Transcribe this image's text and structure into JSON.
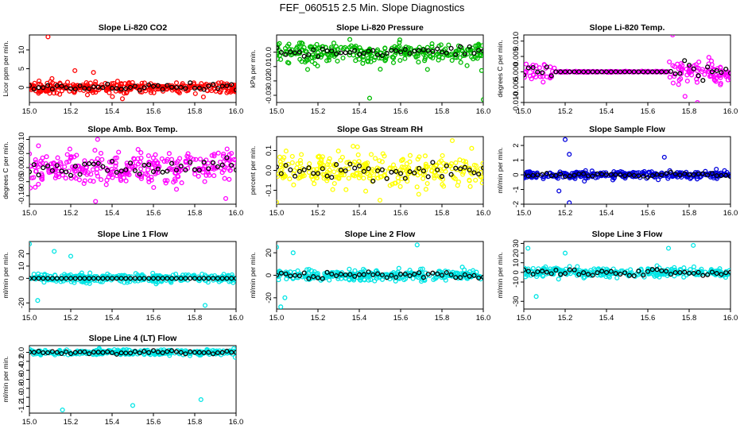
{
  "page": {
    "title": "FEF_060515  2.5 Min. Slope Diagnostics"
  },
  "chart_data": [
    {
      "type": "scatter",
      "title": "Slope Li-820 CO2",
      "xlabel": "",
      "ylabel": "Licor ppm per min.",
      "color": "#ff0000",
      "xlim": [
        15.0,
        16.0
      ],
      "ylim": [
        -4,
        14
      ],
      "xticks": [
        "15.0",
        "15.2",
        "15.4",
        "15.6",
        "15.8",
        "16.0"
      ],
      "yticks": [
        "0",
        "5",
        "10"
      ],
      "spread": 1.2,
      "outliers": [
        [
          15.09,
          13.5
        ],
        [
          15.22,
          4.5
        ],
        [
          15.45,
          -3
        ],
        [
          15.31,
          4
        ]
      ]
    },
    {
      "type": "scatter",
      "title": "Slope Li-820 Pressure",
      "xlabel": "",
      "ylabel": "kPa per min.",
      "color": "#00bb00",
      "xlim": [
        15.0,
        16.0
      ],
      "ylim": [
        -0.035,
        0.012
      ],
      "xticks": [
        "15.0",
        "15.2",
        "15.4",
        "15.6",
        "15.8",
        "16.0"
      ],
      "yticks": [
        "-0.03",
        "-0.02",
        "-0.01",
        "0.0"
      ],
      "spread": 0.006,
      "outliers": [
        [
          15.45,
          -0.032
        ],
        [
          16.0,
          -0.033
        ],
        [
          15.15,
          -0.012
        ],
        [
          15.73,
          -0.012
        ]
      ]
    },
    {
      "type": "scatter",
      "title": "Slope Li-820 Temp.",
      "xlabel": "",
      "ylabel": "degrees C per min.",
      "color": "#ff00ff",
      "xlim": [
        15.0,
        16.0
      ],
      "ylim": [
        -0.01,
        0.012
      ],
      "xticks": [
        "15.0",
        "15.2",
        "15.4",
        "15.6",
        "15.8",
        "16.0"
      ],
      "yticks": [
        "-0.010",
        "-0.005",
        "0.000",
        "0.005",
        "0.010"
      ],
      "spread": 0.003,
      "outliers": [
        [
          15.72,
          0.012
        ],
        [
          15.78,
          -0.008
        ],
        [
          15.84,
          -0.01
        ]
      ]
    },
    {
      "type": "scatter",
      "title": "Slope Amb. Box Temp.",
      "xlabel": "",
      "ylabel": "degrees C per min.",
      "color": "#ff00ff",
      "xlim": [
        15.0,
        16.0
      ],
      "ylim": [
        -0.13,
        0.11
      ],
      "xticks": [
        "15.0",
        "15.2",
        "15.4",
        "15.6",
        "15.8",
        "16.0"
      ],
      "yticks": [
        "-0.10",
        "-0.05",
        "0.00",
        "0.05",
        "0.10"
      ],
      "spread": 0.05,
      "outliers": [
        [
          15.32,
          -0.12
        ],
        [
          15.95,
          -0.11
        ],
        [
          15.33,
          0.1
        ]
      ]
    },
    {
      "type": "scatter",
      "title": "Slope Gas Stream RH",
      "xlabel": "",
      "ylabel": "percent per min.",
      "color": "#ffff00",
      "xlim": [
        15.0,
        16.0
      ],
      "ylim": [
        -0.17,
        0.17
      ],
      "xticks": [
        "15.0",
        "15.2",
        "15.4",
        "15.6",
        "15.8",
        "16.0"
      ],
      "yticks": [
        "-0.1",
        "0.0",
        "0.1"
      ],
      "spread": 0.06,
      "outliers": [
        [
          15.85,
          0.15
        ],
        [
          15.0,
          -0.16
        ],
        [
          15.5,
          -0.15
        ]
      ]
    },
    {
      "type": "scatter",
      "title": "Slope Sample Flow",
      "xlabel": "",
      "ylabel": "ml/min per min.",
      "color": "#0000dd",
      "xlim": [
        15.0,
        16.0
      ],
      "ylim": [
        -2,
        2.6
      ],
      "xticks": [
        "15.0",
        "15.2",
        "15.4",
        "15.6",
        "15.8",
        "16.0"
      ],
      "yticks": [
        "-2",
        "-1",
        "0",
        "1",
        "2"
      ],
      "spread": 0.2,
      "outliers": [
        [
          15.2,
          2.4
        ],
        [
          15.22,
          -1.9
        ],
        [
          15.22,
          1.4
        ],
        [
          15.17,
          -1.1
        ],
        [
          15.68,
          1.2
        ]
      ]
    },
    {
      "type": "scatter",
      "title": "Slope Line 1 Flow",
      "xlabel": "",
      "ylabel": "ml/min per min.",
      "color": "#00e5e5",
      "xlim": [
        15.0,
        16.0
      ],
      "ylim": [
        -25,
        30
      ],
      "xticks": [
        "15.0",
        "15.2",
        "15.4",
        "15.6",
        "15.8",
        "16.0"
      ],
      "yticks": [
        "-20",
        "0",
        "10",
        "20"
      ],
      "spread": 3,
      "outliers": [
        [
          15.0,
          28
        ],
        [
          15.12,
          22
        ],
        [
          15.2,
          18
        ],
        [
          15.04,
          -18
        ],
        [
          15.85,
          -22
        ]
      ]
    },
    {
      "type": "scatter",
      "title": "Slope Line 2 Flow",
      "xlabel": "",
      "ylabel": "ml/min per min.",
      "color": "#00e5e5",
      "xlim": [
        15.0,
        16.0
      ],
      "ylim": [
        -30,
        30
      ],
      "xticks": [
        "15.0",
        "15.2",
        "15.4",
        "15.6",
        "15.8",
        "16.0"
      ],
      "yticks": [
        "-20",
        "0",
        "20"
      ],
      "spread": 4,
      "outliers": [
        [
          15.0,
          25
        ],
        [
          15.08,
          20
        ],
        [
          15.68,
          27
        ],
        [
          15.02,
          -28
        ],
        [
          15.04,
          -20
        ]
      ]
    },
    {
      "type": "scatter",
      "title": "Slope Line 3 Flow",
      "xlabel": "",
      "ylabel": "ml/min per min.",
      "color": "#00e5e5",
      "xlim": [
        15.0,
        16.0
      ],
      "ylim": [
        -38,
        32
      ],
      "xticks": [
        "15.0",
        "15.2",
        "15.4",
        "15.6",
        "15.8",
        "16.0"
      ],
      "yticks": [
        "-30",
        "-10",
        "0",
        "10",
        "20",
        "30"
      ],
      "spread": 4,
      "outliers": [
        [
          15.02,
          25
        ],
        [
          15.2,
          20
        ],
        [
          15.7,
          25
        ],
        [
          15.82,
          28
        ],
        [
          15.06,
          -25
        ]
      ]
    },
    {
      "type": "scatter",
      "title": "Slope Line 4 (LT) Flow",
      "xlabel": "",
      "ylabel": "ml/min per min.",
      "color": "#00e5e5",
      "xlim": [
        15.0,
        16.0
      ],
      "ylim": [
        -1.35,
        0.15
      ],
      "xticks": [
        "15.0",
        "15.2",
        "15.4",
        "15.6",
        "15.8",
        "16.0"
      ],
      "yticks": [
        "-1.2",
        "-1.0",
        "-0.8",
        "-0.6",
        "-0.4",
        "-0.2",
        "0.0"
      ],
      "spread": 0.05,
      "outliers": [
        [
          15.16,
          -1.28
        ],
        [
          15.5,
          -1.18
        ],
        [
          15.83,
          -1.05
        ]
      ]
    }
  ]
}
